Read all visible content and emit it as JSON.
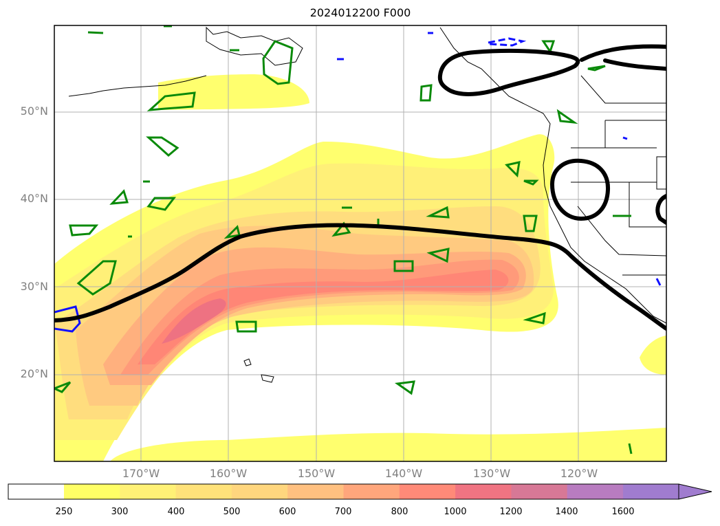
{
  "title": "2024012200 F000",
  "map": {
    "lat_labels": [
      "50°N",
      "40°N",
      "30°N",
      "20°N"
    ],
    "lon_labels": [
      "170°W",
      "160°W",
      "150°W",
      "140°W",
      "130°W",
      "120°W"
    ],
    "extent": {
      "lon_min": -180,
      "lon_max": -110,
      "lat_min": 10,
      "lat_max": 60
    },
    "grid": true,
    "filled_field": "integrated vapor transport style shading (atmospheric river)",
    "contours": {
      "black": "thick black height contour",
      "green": "green contours",
      "blue": "blue contours (solid and dashed)"
    }
  },
  "colorbar": {
    "ticks": [
      "250",
      "300",
      "400",
      "500",
      "600",
      "700",
      "800",
      "1000",
      "1200",
      "1400",
      "1600"
    ],
    "colors": [
      "#ffff66",
      "#fff176",
      "#ffe27a",
      "#ffd67e",
      "#ffc080",
      "#ffa67c",
      "#ff8a78",
      "#f07482",
      "#d77896",
      "#b87cc0",
      "#a07ccf"
    ],
    "extend": "max"
  }
}
